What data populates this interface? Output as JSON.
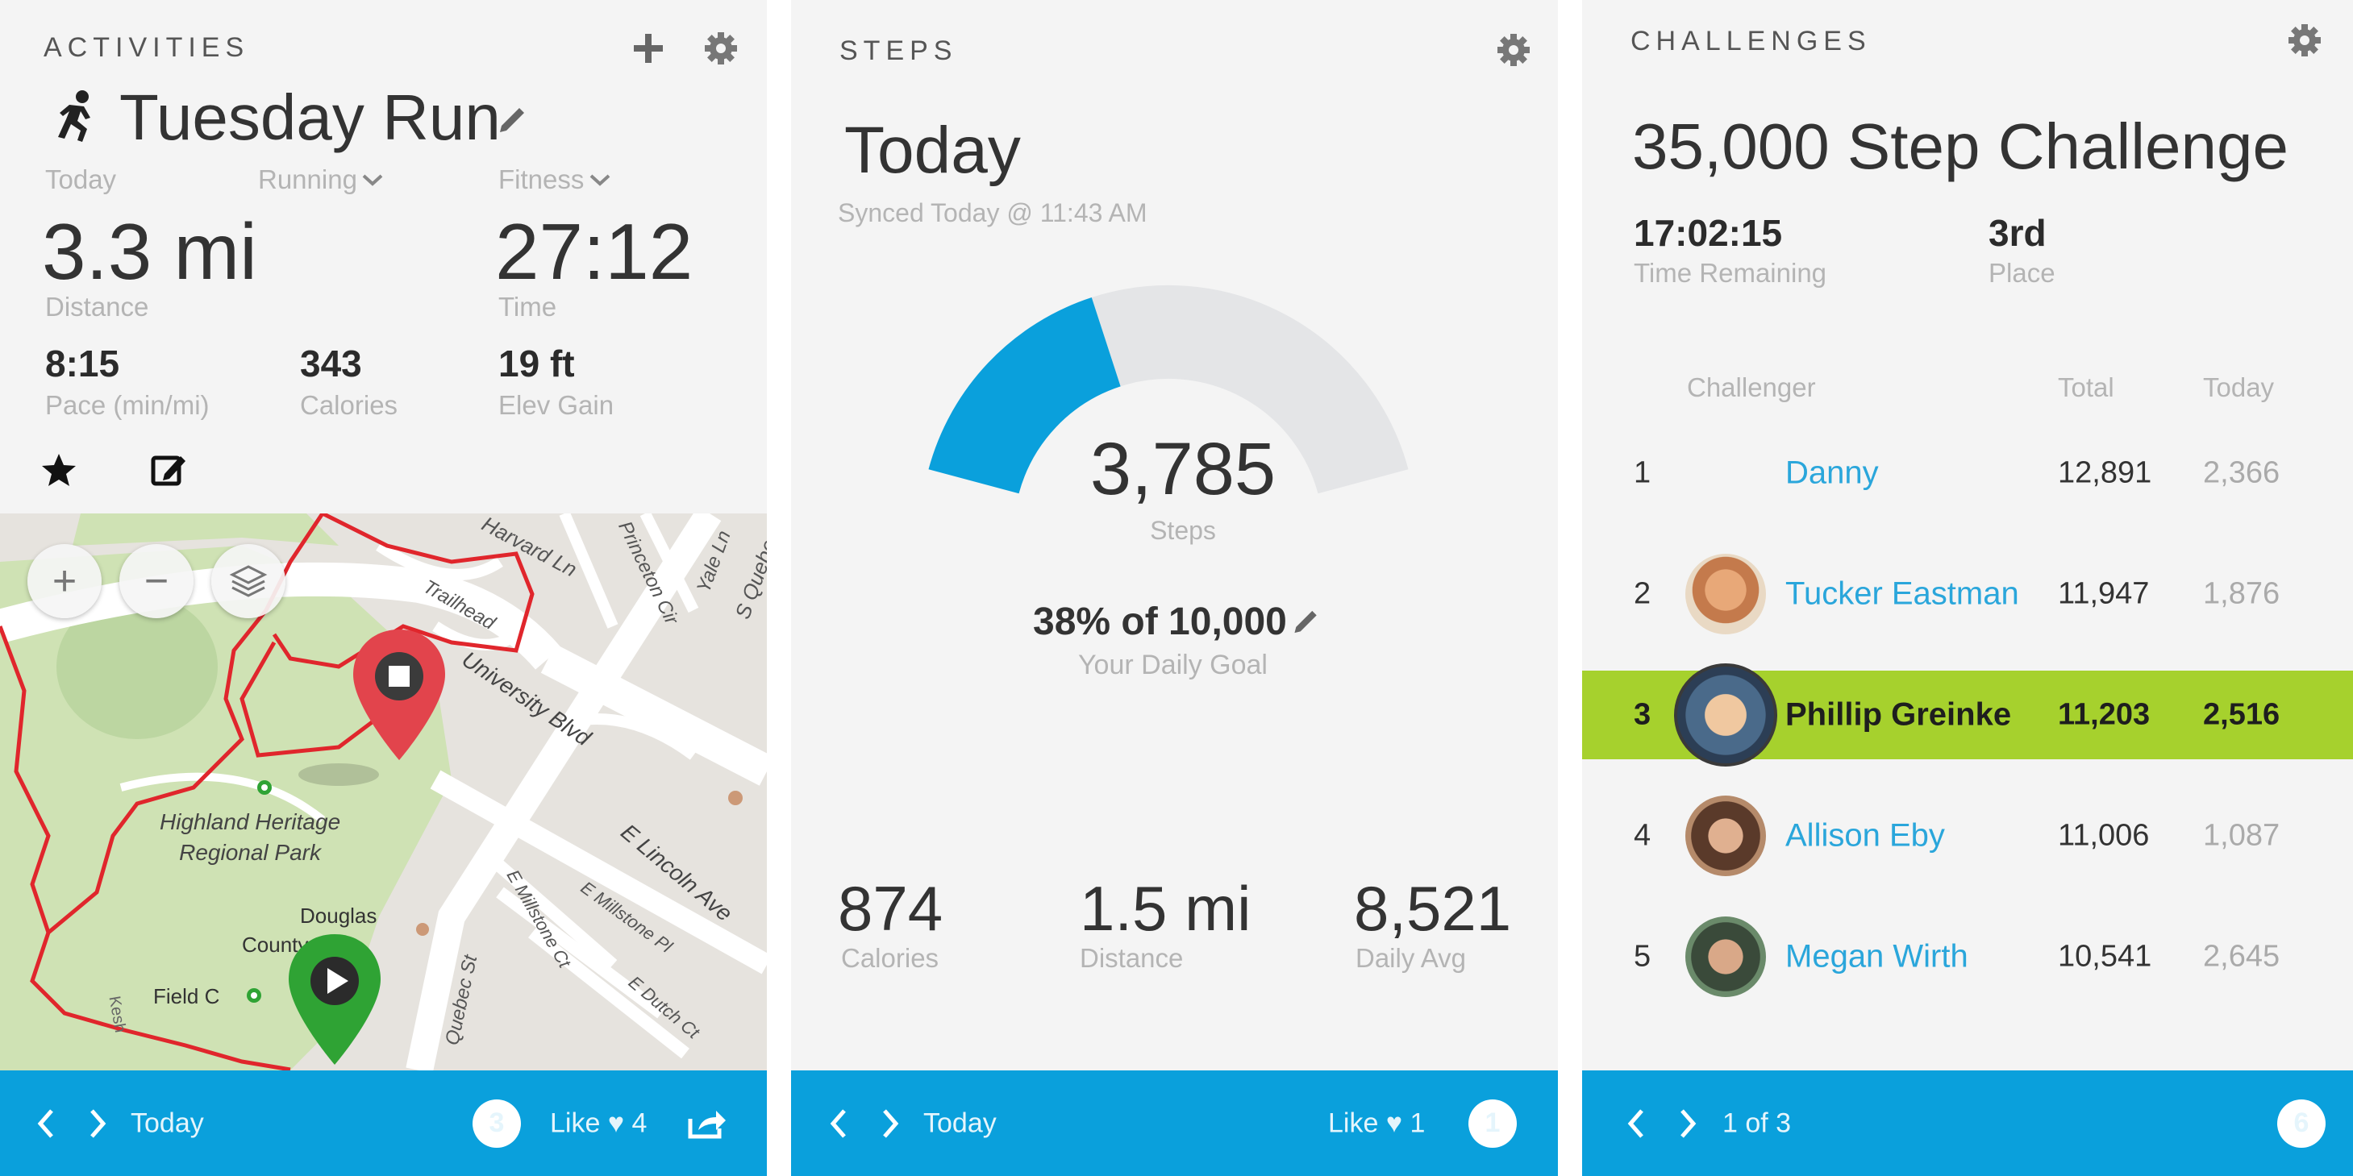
{
  "activities": {
    "section_title": "ACTIVITIES",
    "plus_icon": "plus-icon",
    "activity_title": "Tuesday Run",
    "date_label": "Today",
    "type_dropdown": "Running",
    "category_dropdown": "Fitness",
    "distance_value": "3.3 mi",
    "distance_label": "Distance",
    "time_value": "27:12",
    "time_label": "Time",
    "pace_value": "8:15",
    "pace_label": "Pace (min/mi)",
    "calories_value": "343",
    "calories_label": "Calories",
    "elev_value": "19 ft",
    "elev_label": "Elev Gain",
    "map": {
      "park_name_line1": "Highland Heritage",
      "park_name_line2": "Regional Park",
      "street_1": "Harvard Ln",
      "street_2": "Trailhead",
      "street_3": "Princeton Cir",
      "street_4": "Yale Ln",
      "street_5": "S Quebec",
      "street_6": "University Blvd",
      "street_7": "E Lincoln Ave",
      "street_8": "E Millstone Ct",
      "street_9": "E Millstone Pl",
      "street_10": "E Dutch Ct",
      "street_11": "Quebec St",
      "poi_1": "Douglas",
      "poi_2": "County",
      "poi_3": "Field C",
      "street_12": "Kesh"
    },
    "footer": {
      "date": "Today",
      "comments": "3",
      "like_label": "Like ♥ 4"
    }
  },
  "steps": {
    "section_title": "STEPS",
    "period": "Today",
    "sync_status": "Synced Today @ 11:43 AM",
    "steps_value": "3,785",
    "steps_label": "Steps",
    "goal_text": "38% of 10,000",
    "goal_label": "Your Daily Goal",
    "goal_fraction": 0.38,
    "calories_value": "874",
    "calories_label": "Calories",
    "distance_value": "1.5 mi",
    "distance_label": "Distance",
    "daily_avg_value": "8,521",
    "daily_avg_label": "Daily Avg",
    "footer": {
      "date": "Today",
      "like_label": "Like ♥ 1",
      "comments": "1"
    }
  },
  "challenges": {
    "section_title": "CHALLENGES",
    "challenge_title": "35,000 Step Challenge",
    "time_remaining_value": "17:02:15",
    "time_remaining_label": "Time Remaining",
    "place_value": "3rd",
    "place_label": "Place",
    "columns": {
      "challenger": "Challenger",
      "total": "Total",
      "today": "Today"
    },
    "rows": [
      {
        "rank": "1",
        "name": "Danny",
        "total": "12,891",
        "today": "2,366"
      },
      {
        "rank": "2",
        "name": "Tucker Eastman",
        "total": "11,947",
        "today": "1,876"
      },
      {
        "rank": "3",
        "name": "Phillip Greinke",
        "total": "11,203",
        "today": "2,516"
      },
      {
        "rank": "4",
        "name": "Allison Eby",
        "total": "11,006",
        "today": "1,087"
      },
      {
        "rank": "5",
        "name": "Megan Wirth",
        "total": "10,541",
        "today": "2,645"
      }
    ],
    "footer": {
      "pager": "1 of 3",
      "comments": "6"
    }
  },
  "colors": {
    "accent_blue": "#0aa0dc",
    "gauge_fill": "#0aa0dc",
    "gauge_track": "#e4e5e7",
    "highlight_green": "#a6d12d",
    "route_red": "#e0262c",
    "stop_pin": "#e2444c",
    "start_pin": "#2fa334"
  }
}
